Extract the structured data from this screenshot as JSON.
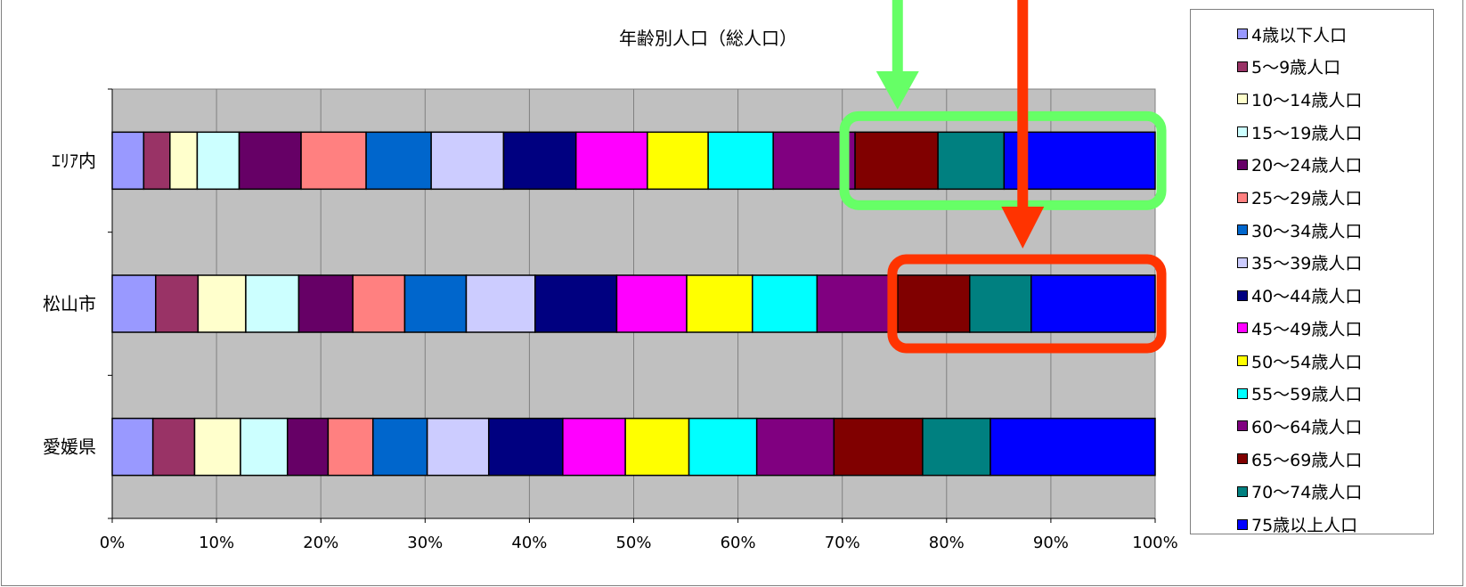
{
  "chart_data": {
    "type": "bar",
    "orientation": "horizontal",
    "stacking": "percent",
    "title": "年齢別人口（総人口）",
    "categories": [
      "ｴﾘｱ内",
      "松山市",
      "愛媛県"
    ],
    "xlim": [
      0,
      100
    ],
    "x_ticks": [
      "0%",
      "10%",
      "20%",
      "30%",
      "40%",
      "50%",
      "60%",
      "70%",
      "80%",
      "90%",
      "100%"
    ],
    "grid": true,
    "legend_position": "right",
    "series": [
      {
        "name": "4歳以下人口",
        "color": "#9999FF",
        "values": [
          3.0,
          4.1,
          3.9
        ]
      },
      {
        "name": "5～9歳人口",
        "color": "#993366",
        "values": [
          2.5,
          4.0,
          4.0
        ]
      },
      {
        "name": "10～14歳人口",
        "color": "#FFFFCC",
        "values": [
          2.6,
          4.5,
          4.4
        ]
      },
      {
        "name": "15～19歳人口",
        "color": "#CCFFFF",
        "values": [
          4.0,
          5.0,
          4.5
        ]
      },
      {
        "name": "20～24歳人口",
        "color": "#660066",
        "values": [
          5.9,
          5.1,
          3.9
        ]
      },
      {
        "name": "25～29歳人口",
        "color": "#FF8080",
        "values": [
          6.2,
          4.9,
          4.3
        ]
      },
      {
        "name": "30～34歳人口",
        "color": "#0066CC",
        "values": [
          6.2,
          5.8,
          5.2
        ]
      },
      {
        "name": "35～39歳人口",
        "color": "#CCCCFF",
        "values": [
          6.9,
          6.5,
          5.9
        ]
      },
      {
        "name": "40～44歳人口",
        "color": "#000080",
        "values": [
          6.9,
          7.7,
          7.1
        ]
      },
      {
        "name": "45～49歳人口",
        "color": "#FF00FF",
        "values": [
          6.8,
          6.6,
          6.0
        ]
      },
      {
        "name": "50～54歳人口",
        "color": "#FFFF00",
        "values": [
          5.8,
          6.2,
          6.1
        ]
      },
      {
        "name": "55～59歳人口",
        "color": "#00FFFF",
        "values": [
          6.2,
          6.1,
          6.5
        ]
      },
      {
        "name": "60～64歳人口",
        "color": "#800080",
        "values": [
          7.8,
          7.6,
          7.4
        ]
      },
      {
        "name": "65～69歳人口",
        "color": "#800000",
        "values": [
          7.9,
          6.8,
          8.5
        ]
      },
      {
        "name": "70～74歳人口",
        "color": "#008080",
        "values": [
          6.3,
          5.8,
          6.5
        ]
      },
      {
        "name": "75歳以上人口",
        "color": "#0000FF",
        "values": [
          14.4,
          11.7,
          15.8
        ]
      }
    ]
  },
  "annotations": {
    "green_color": "#66FF66",
    "red_color": "#FF3300"
  }
}
